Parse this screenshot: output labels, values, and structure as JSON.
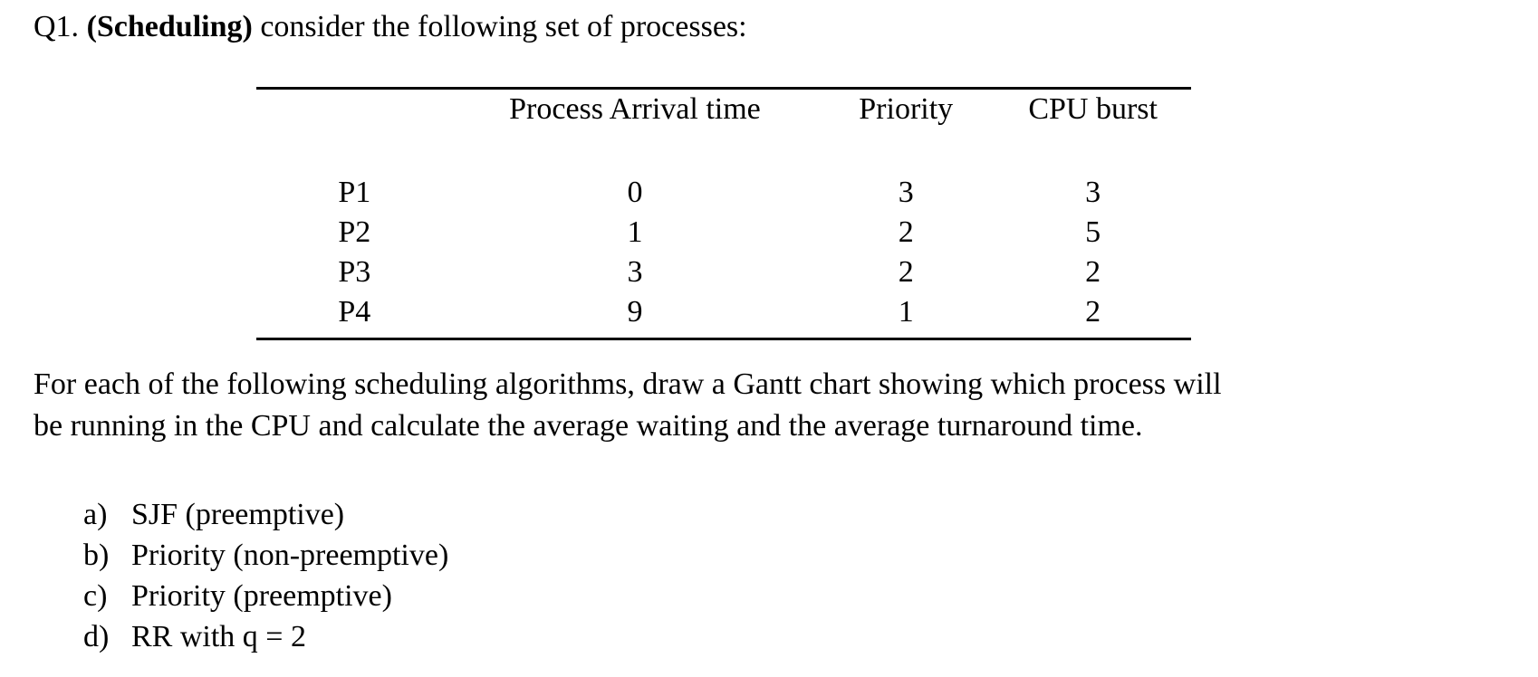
{
  "heading": {
    "number": "Q1. ",
    "topic": "(Scheduling)",
    "intro": " consider the following set of processes:"
  },
  "table": {
    "headers": {
      "arrival": "Process Arrival time",
      "priority": "Priority",
      "burst": "CPU burst"
    },
    "rows": [
      {
        "process": "P1",
        "arrival": "0",
        "priority": "3",
        "burst": "3"
      },
      {
        "process": "P2",
        "arrival": "1",
        "priority": "2",
        "burst": "5"
      },
      {
        "process": "P3",
        "arrival": "3",
        "priority": "2",
        "burst": "2"
      },
      {
        "process": "P4",
        "arrival": "9",
        "priority": "1",
        "burst": "2"
      }
    ]
  },
  "prompt": {
    "line1": "For each of the following scheduling algorithms, draw a Gantt chart showing which process will",
    "line2": "be running in the CPU and calculate the average waiting and the average turnaround time."
  },
  "algorithms": [
    {
      "marker": "a)",
      "label": "SJF (preemptive)"
    },
    {
      "marker": "b)",
      "label": "Priority (non-preemptive)"
    },
    {
      "marker": "c)",
      "label": "Priority (preemptive)"
    },
    {
      "marker": "d)",
      "label": "RR with q = 2"
    }
  ]
}
